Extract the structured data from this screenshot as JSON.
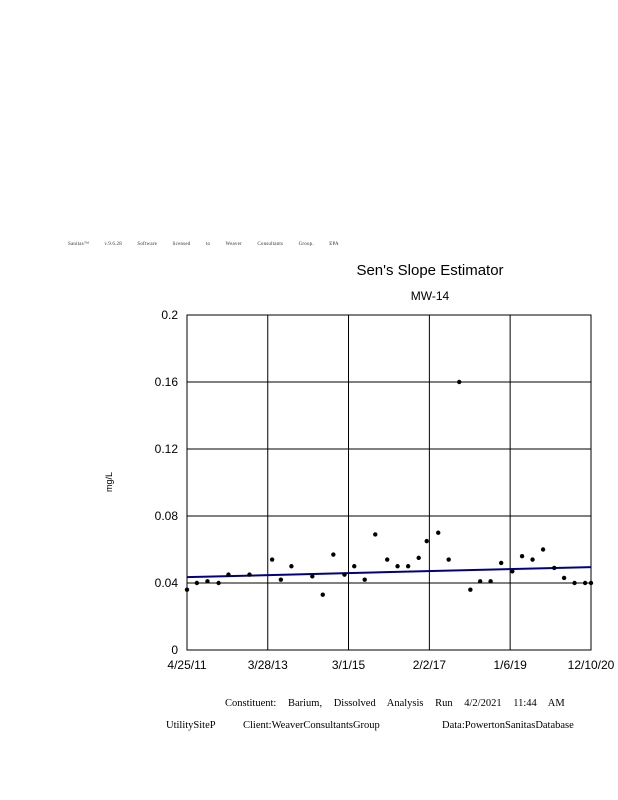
{
  "license_text": "Sanitas™ v.9.6.28 Software licensed to Weaver Consultants Group. EPA",
  "footer": {
    "line1": "Constituent: Barium, Dissolved Analysis Run 4/2/2021 11:44 AM",
    "site": "UtilitySiteP",
    "client": "Client:WeaverConsultantsGroup",
    "data": "Data:PowertonSanitasDatabase"
  },
  "chart_data": {
    "type": "scatter",
    "title": "Sen's Slope Estimator",
    "subtitle": "MW-14",
    "xlabel": "",
    "ylabel": "mg/L",
    "x_tick_labels": [
      "4/25/11",
      "3/28/13",
      "3/1/15",
      "2/2/17",
      "1/6/19",
      "12/10/20"
    ],
    "x_ticks": [
      "2011-04-25",
      "2013-03-28",
      "2015-03-01",
      "2017-02-02",
      "2019-01-06",
      "2020-12-10"
    ],
    "xlim": [
      "2011-04-25",
      "2020-12-10"
    ],
    "y_tick_labels": [
      "0",
      "0.04",
      "0.08",
      "0.12",
      "0.16",
      "0.2"
    ],
    "y_ticks": [
      0,
      0.04,
      0.08,
      0.12,
      0.16,
      0.2
    ],
    "ylim": [
      0,
      0.2
    ],
    "grid": true,
    "point_color": "#000000",
    "trend_color": "#000080",
    "points": [
      {
        "x": "2011-04-25",
        "y": 0.036
      },
      {
        "x": "2011-07-20",
        "y": 0.04
      },
      {
        "x": "2011-10-20",
        "y": 0.041
      },
      {
        "x": "2012-01-25",
        "y": 0.04
      },
      {
        "x": "2012-04-20",
        "y": 0.045
      },
      {
        "x": "2012-10-20",
        "y": 0.045
      },
      {
        "x": "2013-05-05",
        "y": 0.054
      },
      {
        "x": "2013-07-20",
        "y": 0.042
      },
      {
        "x": "2013-10-20",
        "y": 0.05
      },
      {
        "x": "2014-04-20",
        "y": 0.044
      },
      {
        "x": "2014-07-20",
        "y": 0.033
      },
      {
        "x": "2014-10-20",
        "y": 0.057
      },
      {
        "x": "2015-01-25",
        "y": 0.045
      },
      {
        "x": "2015-04-20",
        "y": 0.05
      },
      {
        "x": "2015-07-20",
        "y": 0.042
      },
      {
        "x": "2015-10-20",
        "y": 0.069
      },
      {
        "x": "2016-02-01",
        "y": 0.054
      },
      {
        "x": "2016-05-01",
        "y": 0.05
      },
      {
        "x": "2016-08-01",
        "y": 0.05
      },
      {
        "x": "2016-11-01",
        "y": 0.055
      },
      {
        "x": "2017-01-10",
        "y": 0.065
      },
      {
        "x": "2017-04-20",
        "y": 0.07
      },
      {
        "x": "2017-07-20",
        "y": 0.054
      },
      {
        "x": "2017-10-20",
        "y": 0.16
      },
      {
        "x": "2018-01-25",
        "y": 0.036
      },
      {
        "x": "2018-04-20",
        "y": 0.041
      },
      {
        "x": "2018-07-20",
        "y": 0.041
      },
      {
        "x": "2018-10-20",
        "y": 0.052
      },
      {
        "x": "2019-01-25",
        "y": 0.047
      },
      {
        "x": "2019-04-20",
        "y": 0.056
      },
      {
        "x": "2019-07-20",
        "y": 0.054
      },
      {
        "x": "2019-10-20",
        "y": 0.06
      },
      {
        "x": "2020-01-25",
        "y": 0.049
      },
      {
        "x": "2020-04-20",
        "y": 0.043
      },
      {
        "x": "2020-07-20",
        "y": 0.04
      },
      {
        "x": "2020-10-20",
        "y": 0.04
      },
      {
        "x": "2020-12-10",
        "y": 0.04
      }
    ],
    "trend_line": {
      "start": {
        "x": "2011-04-25",
        "y": 0.0435
      },
      "end": {
        "x": "2020-12-10",
        "y": 0.0495
      }
    }
  }
}
